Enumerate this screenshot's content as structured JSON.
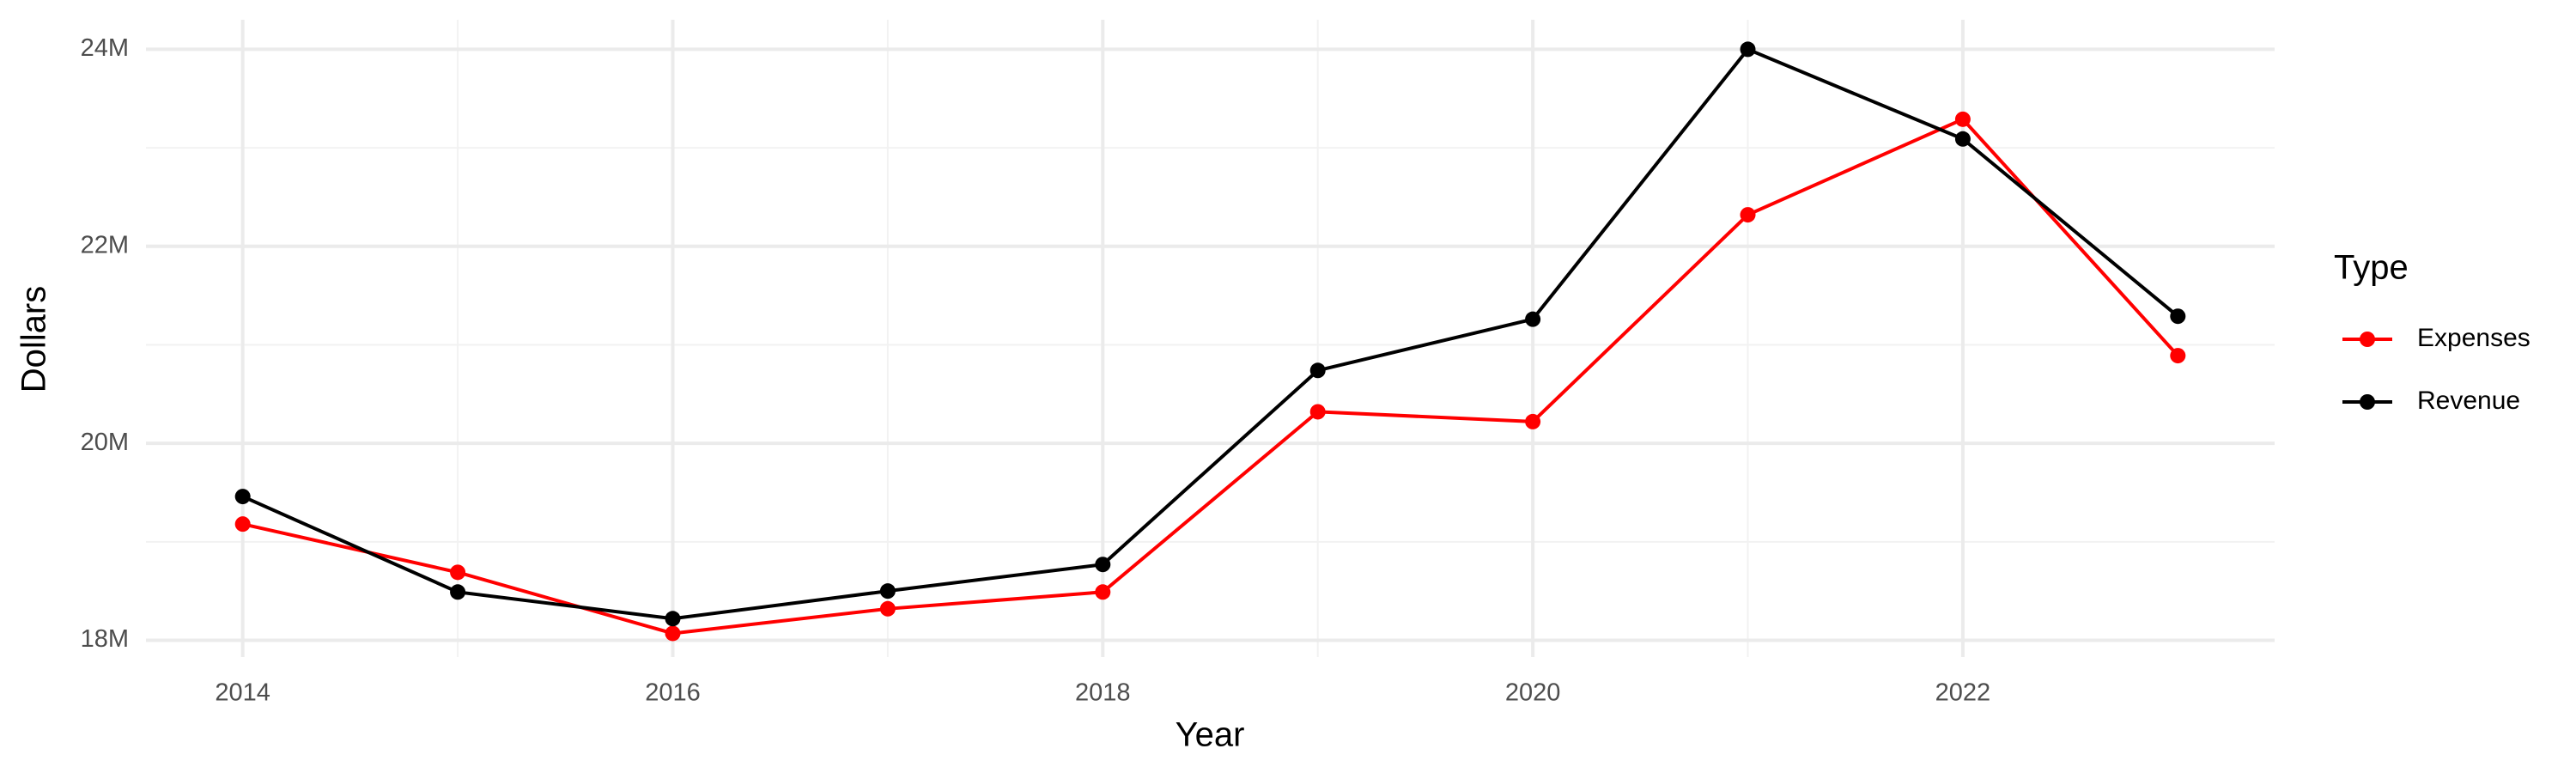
{
  "chart_data": {
    "type": "line",
    "x_label": "Year",
    "y_label": "Dollars",
    "legend_title": "Type",
    "x": [
      2014,
      2015,
      2016,
      2017,
      2018,
      2019,
      2020,
      2021,
      2022,
      2023
    ],
    "series": [
      {
        "name": "Expenses",
        "color": "#ff0000",
        "values": [
          19180000,
          18690000,
          18070000,
          18320000,
          18490000,
          20320000,
          20220000,
          22320000,
          23290000,
          20890000
        ]
      },
      {
        "name": "Revenue",
        "color": "#000000",
        "values": [
          19460000,
          18490000,
          18220000,
          18500000,
          18770000,
          20740000,
          21260000,
          24000000,
          23090000,
          21290000
        ]
      }
    ],
    "xlim": [
      2013.55,
      2023.45
    ],
    "xticks": [
      2014,
      2016,
      2018,
      2020,
      2022
    ],
    "ylim": [
      17830000,
      24300000
    ],
    "yticks": [
      {
        "value": 18000000,
        "label": "18M"
      },
      {
        "value": 20000000,
        "label": "20M"
      },
      {
        "value": 22000000,
        "label": "22M"
      },
      {
        "value": 24000000,
        "label": "24M"
      }
    ],
    "grid": true,
    "legend": "right"
  }
}
